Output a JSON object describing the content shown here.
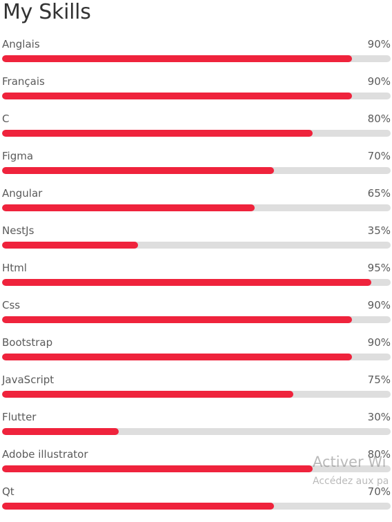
{
  "page": {
    "title": "My Skills"
  },
  "colors": {
    "bar_fill": "#ef233c",
    "bar_track": "#dedede",
    "text": "#5a5a5a"
  },
  "skills": [
    {
      "label": "Anglais",
      "percent_text": "90%",
      "level": 0.9
    },
    {
      "label": "Français",
      "percent_text": "90%",
      "level": 0.9
    },
    {
      "label": "C",
      "percent_text": "80%",
      "level": 0.8
    },
    {
      "label": "Figma",
      "percent_text": "70%",
      "level": 0.7
    },
    {
      "label": "Angular",
      "percent_text": "65%",
      "level": 0.65
    },
    {
      "label": "NestJs",
      "percent_text": "35%",
      "level": 0.35
    },
    {
      "label": "Html",
      "percent_text": "95%",
      "level": 0.95
    },
    {
      "label": "Css",
      "percent_text": "90%",
      "level": 0.9
    },
    {
      "label": "Bootstrap",
      "percent_text": "90%",
      "level": 0.9
    },
    {
      "label": "JavaScript",
      "percent_text": "75%",
      "level": 0.75
    },
    {
      "label": "Flutter",
      "percent_text": "30%",
      "level": 0.3
    },
    {
      "label": "Adobe illustrator",
      "percent_text": "80%",
      "level": 0.8
    },
    {
      "label": "Qt",
      "percent_text": "70%",
      "level": 0.7
    }
  ],
  "watermark": {
    "title": "Activer Wi",
    "subtitle": "Accédez aux pa"
  }
}
